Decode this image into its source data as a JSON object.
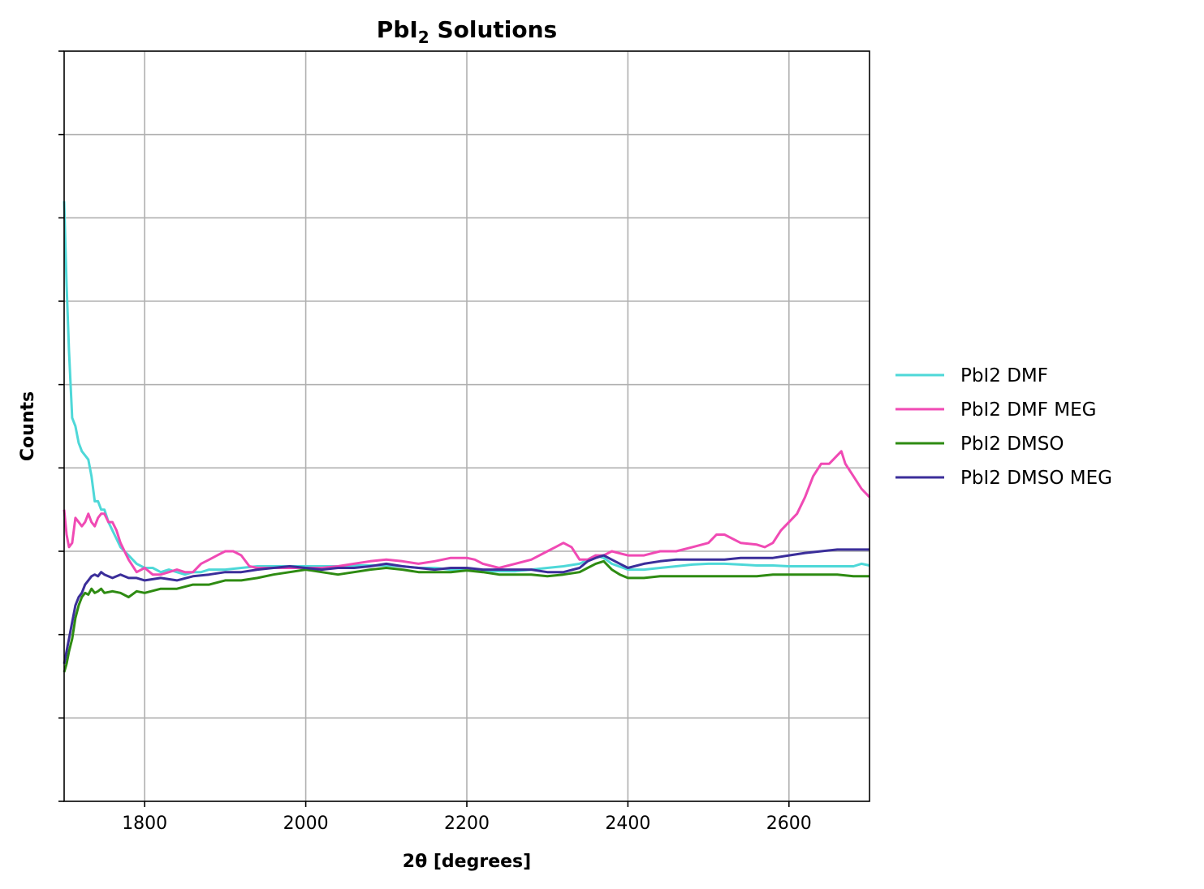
{
  "chart_data": {
    "type": "line",
    "title_main": "PbI",
    "title_sub": "2",
    "title_rest": " Solutions",
    "xlabel": "2θ [degrees]",
    "ylabel": "Counts",
    "xlim": [
      1700,
      2700
    ],
    "ylim": [
      0,
      9
    ],
    "xticks": [
      1800,
      2000,
      2200,
      2400,
      2600
    ],
    "yticks": [
      0,
      1,
      2,
      3,
      4,
      5,
      6,
      7,
      8,
      9
    ],
    "y_tick_labels_shown": false,
    "grid": true,
    "legend_position": "right-center",
    "series": [
      {
        "name": "PbI2 DMF",
        "color": "#4ed8d8",
        "x": [
          1700,
          1703,
          1706,
          1710,
          1714,
          1718,
          1722,
          1726,
          1730,
          1734,
          1738,
          1742,
          1746,
          1750,
          1755,
          1760,
          1765,
          1770,
          1775,
          1780,
          1790,
          1800,
          1810,
          1820,
          1830,
          1840,
          1850,
          1860,
          1870,
          1880,
          1900,
          1920,
          1940,
          1960,
          1980,
          2000,
          2020,
          2040,
          2060,
          2080,
          2100,
          2120,
          2140,
          2160,
          2180,
          2200,
          2220,
          2240,
          2260,
          2280,
          2300,
          2320,
          2340,
          2350,
          2360,
          2370,
          2380,
          2400,
          2420,
          2440,
          2460,
          2480,
          2500,
          2520,
          2540,
          2560,
          2580,
          2600,
          2620,
          2640,
          2660,
          2680,
          2690,
          2700
        ],
        "y": [
          7.2,
          6.2,
          5.4,
          4.6,
          4.5,
          4.3,
          4.2,
          4.15,
          4.1,
          3.9,
          3.6,
          3.6,
          3.5,
          3.5,
          3.35,
          3.25,
          3.15,
          3.05,
          3.0,
          2.95,
          2.85,
          2.8,
          2.8,
          2.75,
          2.78,
          2.75,
          2.72,
          2.75,
          2.75,
          2.78,
          2.78,
          2.8,
          2.82,
          2.82,
          2.82,
          2.82,
          2.82,
          2.82,
          2.83,
          2.83,
          2.83,
          2.82,
          2.8,
          2.8,
          2.78,
          2.77,
          2.76,
          2.76,
          2.76,
          2.78,
          2.8,
          2.82,
          2.85,
          2.9,
          2.95,
          2.92,
          2.85,
          2.78,
          2.78,
          2.8,
          2.82,
          2.84,
          2.85,
          2.85,
          2.84,
          2.83,
          2.83,
          2.82,
          2.82,
          2.82,
          2.82,
          2.82,
          2.85,
          2.83
        ]
      },
      {
        "name": "PbI2 DMF MEG",
        "color": "#f04ab4",
        "x": [
          1700,
          1703,
          1706,
          1710,
          1714,
          1718,
          1722,
          1726,
          1730,
          1734,
          1738,
          1742,
          1746,
          1750,
          1755,
          1760,
          1765,
          1770,
          1780,
          1790,
          1800,
          1810,
          1820,
          1830,
          1840,
          1850,
          1860,
          1870,
          1880,
          1890,
          1900,
          1910,
          1920,
          1930,
          1940,
          1960,
          1980,
          2000,
          2020,
          2040,
          2060,
          2080,
          2100,
          2120,
          2140,
          2160,
          2180,
          2200,
          2210,
          2220,
          2240,
          2260,
          2280,
          2300,
          2310,
          2320,
          2330,
          2340,
          2350,
          2360,
          2370,
          2380,
          2400,
          2420,
          2440,
          2460,
          2480,
          2500,
          2510,
          2520,
          2540,
          2560,
          2570,
          2580,
          2590,
          2600,
          2610,
          2620,
          2630,
          2640,
          2650,
          2660,
          2665,
          2670,
          2680,
          2690,
          2700
        ],
        "y": [
          3.5,
          3.2,
          3.05,
          3.1,
          3.4,
          3.35,
          3.3,
          3.35,
          3.45,
          3.35,
          3.3,
          3.4,
          3.45,
          3.45,
          3.35,
          3.35,
          3.25,
          3.1,
          2.9,
          2.75,
          2.8,
          2.72,
          2.72,
          2.75,
          2.78,
          2.75,
          2.75,
          2.85,
          2.9,
          2.95,
          3.0,
          3.0,
          2.95,
          2.82,
          2.8,
          2.8,
          2.8,
          2.8,
          2.8,
          2.82,
          2.85,
          2.88,
          2.9,
          2.88,
          2.85,
          2.88,
          2.92,
          2.92,
          2.9,
          2.85,
          2.8,
          2.85,
          2.9,
          3.0,
          3.05,
          3.1,
          3.05,
          2.9,
          2.9,
          2.95,
          2.95,
          3.0,
          2.95,
          2.95,
          3.0,
          3.0,
          3.05,
          3.1,
          3.2,
          3.2,
          3.1,
          3.08,
          3.05,
          3.1,
          3.25,
          3.35,
          3.45,
          3.65,
          3.9,
          4.05,
          4.05,
          4.15,
          4.2,
          4.05,
          3.9,
          3.75,
          3.65
        ]
      },
      {
        "name": "PbI2 DMSO",
        "color": "#2e8b12",
        "x": [
          1700,
          1703,
          1706,
          1710,
          1714,
          1718,
          1722,
          1726,
          1730,
          1734,
          1738,
          1742,
          1746,
          1750,
          1760,
          1770,
          1780,
          1790,
          1800,
          1820,
          1840,
          1860,
          1880,
          1900,
          1920,
          1940,
          1960,
          1980,
          2000,
          2020,
          2040,
          2060,
          2080,
          2100,
          2120,
          2140,
          2160,
          2180,
          2200,
          2220,
          2240,
          2260,
          2280,
          2300,
          2320,
          2340,
          2350,
          2360,
          2370,
          2380,
          2390,
          2400,
          2420,
          2440,
          2460,
          2480,
          2500,
          2520,
          2540,
          2560,
          2580,
          2600,
          2620,
          2640,
          2660,
          2680,
          2700
        ],
        "y": [
          1.55,
          1.65,
          1.8,
          1.95,
          2.2,
          2.35,
          2.45,
          2.5,
          2.48,
          2.55,
          2.5,
          2.52,
          2.55,
          2.5,
          2.52,
          2.5,
          2.45,
          2.52,
          2.5,
          2.55,
          2.55,
          2.6,
          2.6,
          2.65,
          2.65,
          2.68,
          2.72,
          2.75,
          2.78,
          2.75,
          2.72,
          2.75,
          2.78,
          2.8,
          2.78,
          2.75,
          2.75,
          2.75,
          2.77,
          2.75,
          2.72,
          2.72,
          2.72,
          2.7,
          2.72,
          2.75,
          2.8,
          2.85,
          2.88,
          2.78,
          2.72,
          2.68,
          2.68,
          2.7,
          2.7,
          2.7,
          2.7,
          2.7,
          2.7,
          2.7,
          2.72,
          2.72,
          2.72,
          2.72,
          2.72,
          2.7,
          2.7
        ]
      },
      {
        "name": "PbI2 DMSO MEG",
        "color": "#3b2e9a",
        "x": [
          1700,
          1703,
          1706,
          1710,
          1714,
          1718,
          1722,
          1726,
          1730,
          1734,
          1738,
          1742,
          1746,
          1750,
          1760,
          1770,
          1780,
          1790,
          1800,
          1820,
          1840,
          1860,
          1880,
          1900,
          1920,
          1940,
          1960,
          1980,
          2000,
          2020,
          2040,
          2060,
          2080,
          2100,
          2120,
          2140,
          2160,
          2180,
          2200,
          2220,
          2240,
          2260,
          2280,
          2300,
          2320,
          2340,
          2350,
          2360,
          2370,
          2380,
          2390,
          2400,
          2420,
          2440,
          2460,
          2480,
          2500,
          2520,
          2540,
          2560,
          2580,
          2600,
          2620,
          2640,
          2660,
          2680,
          2700
        ],
        "y": [
          1.65,
          1.8,
          1.95,
          2.15,
          2.35,
          2.45,
          2.5,
          2.6,
          2.65,
          2.7,
          2.72,
          2.7,
          2.75,
          2.72,
          2.68,
          2.72,
          2.68,
          2.68,
          2.65,
          2.68,
          2.65,
          2.7,
          2.72,
          2.75,
          2.75,
          2.78,
          2.8,
          2.82,
          2.8,
          2.78,
          2.8,
          2.8,
          2.82,
          2.85,
          2.82,
          2.8,
          2.78,
          2.8,
          2.8,
          2.78,
          2.78,
          2.78,
          2.78,
          2.75,
          2.75,
          2.8,
          2.88,
          2.92,
          2.95,
          2.9,
          2.85,
          2.8,
          2.85,
          2.88,
          2.9,
          2.9,
          2.9,
          2.9,
          2.92,
          2.92,
          2.92,
          2.95,
          2.98,
          3.0,
          3.02,
          3.02,
          3.02
        ]
      }
    ]
  }
}
